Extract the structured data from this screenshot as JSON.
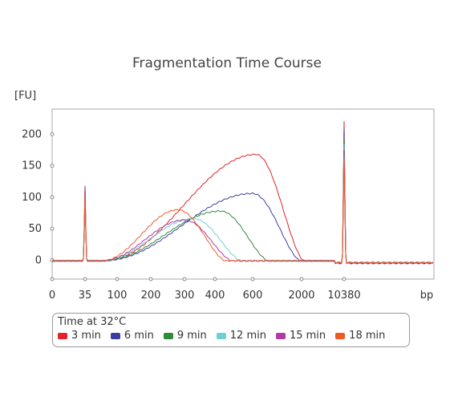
{
  "chart_data": {
    "type": "line",
    "title": "Fragmentation Time Course",
    "ylabel": "[FU]",
    "xlabel": "bp",
    "ylim": [
      -30,
      240
    ],
    "yticks": [
      0,
      50,
      100,
      150,
      200
    ],
    "xticks": [
      "0",
      "35",
      "100",
      "200",
      "300",
      "400",
      "600",
      "2000",
      "10380"
    ],
    "x_scale": "nonlinear (ladder-based)",
    "legend_title": "Time at 32°C",
    "legend_position": "bottom",
    "series": [
      {
        "name": "3 min",
        "color": "#e4222a",
        "peak_bp": 700,
        "peak_fu": 168
      },
      {
        "name": "6 min",
        "color": "#3a3fa0",
        "peak_bp": 600,
        "peak_fu": 106
      },
      {
        "name": "9 min",
        "color": "#2e8b3a",
        "peak_bp": 430,
        "peak_fu": 78
      },
      {
        "name": "12 min",
        "color": "#6fcfd3",
        "peak_bp": 330,
        "peak_fu": 66
      },
      {
        "name": "15 min",
        "color": "#b03aa8",
        "peak_bp": 300,
        "peak_fu": 64
      },
      {
        "name": "18 min",
        "color": "#ee5a24",
        "peak_bp": 280,
        "peak_fu": 80
      }
    ],
    "marker_peaks": [
      {
        "bp": "35",
        "fu": 118
      },
      {
        "bp": "10380",
        "fu": 225
      }
    ]
  }
}
